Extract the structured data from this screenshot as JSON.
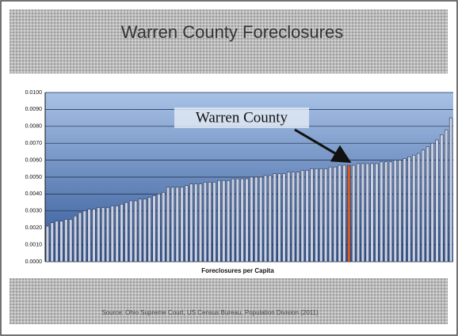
{
  "chart_data": {
    "type": "bar",
    "title": "Warren County Foreclosures",
    "x_label": "Foreclosures per Capita",
    "source": "Source: Ohio Supreme Court, US Census Bureau, Population Division (2011)",
    "annotation": "Warren County",
    "values": [
      0.0021,
      0.0023,
      0.0024,
      0.0024,
      0.0025,
      0.0025,
      0.0027,
      0.0029,
      0.003,
      0.0031,
      0.0031,
      0.0032,
      0.0032,
      0.0032,
      0.0033,
      0.0033,
      0.0034,
      0.0035,
      0.0036,
      0.0036,
      0.0037,
      0.0037,
      0.0038,
      0.0039,
      0.004,
      0.0041,
      0.0044,
      0.0044,
      0.0044,
      0.0044,
      0.0045,
      0.0046,
      0.0046,
      0.0046,
      0.0047,
      0.0047,
      0.0047,
      0.0048,
      0.0048,
      0.0048,
      0.0049,
      0.0049,
      0.0049,
      0.0049,
      0.005,
      0.005,
      0.005,
      0.0051,
      0.0051,
      0.0052,
      0.0052,
      0.0052,
      0.0053,
      0.0053,
      0.0053,
      0.0054,
      0.0054,
      0.0055,
      0.0055,
      0.0055,
      0.0055,
      0.0056,
      0.0056,
      0.0057,
      0.0057,
      0.0057,
      0.0057,
      0.0058,
      0.0058,
      0.0058,
      0.0058,
      0.0058,
      0.0059,
      0.0059,
      0.0059,
      0.006,
      0.006,
      0.0061,
      0.0062,
      0.0063,
      0.0064,
      0.0066,
      0.0068,
      0.007,
      0.0072,
      0.0075,
      0.0078,
      0.0085
    ],
    "colors": [
      "#c9d1e2",
      "#c9d1e2",
      "#c9d1e2",
      "#c9d1e2",
      "#c9d1e2",
      "#c9d1e2",
      "#c9d1e2",
      "#c9d1e2",
      "#c9d1e2",
      "#c9d1e2",
      "#c9d1e2",
      "#c9d1e2",
      "#c9d1e2",
      "#c9d1e2",
      "#c9d1e2",
      "#c9d1e2",
      "#c9d1e2",
      "#c9d1e2",
      "#c9d1e2",
      "#c9d1e2",
      "#c9d1e2",
      "#c9d1e2",
      "#c9d1e2",
      "#c9d1e2",
      "#c9d1e2",
      "#c9d1e2",
      "#c9d1e2",
      "#c9d1e2",
      "#c9d1e2",
      "#c9d1e2",
      "#c9d1e2",
      "#c9d1e2",
      "#c9d1e2",
      "#c9d1e2",
      "#c9d1e2",
      "#c9d1e2",
      "#c9d1e2",
      "#c9d1e2",
      "#c9d1e2",
      "#c9d1e2",
      "#c9d1e2",
      "#c9d1e2",
      "#c9d1e2",
      "#c9d1e2",
      "#c9d1e2",
      "#c9d1e2",
      "#c9d1e2",
      "#c9d1e2",
      "#c9d1e2",
      "#c9d1e2",
      "#c9d1e2",
      "#c9d1e2",
      "#c9d1e2",
      "#c9d1e2",
      "#c9d1e2",
      "#c9d1e2",
      "#c9d1e2",
      "#c9d1e2",
      "#c9d1e2",
      "#c9d1e2",
      "#c9d1e2",
      "#c9d1e2",
      "#c9d1e2",
      "#c9d1e2",
      "#c9d1e2",
      "#d85a22",
      "#c9d1e2",
      "#c9d1e2",
      "#c9d1e2",
      "#c9d1e2",
      "#c9d1e2",
      "#c9d1e2",
      "#c9d1e2",
      "#c9d1e2",
      "#c9d1e2",
      "#c9d1e2",
      "#c9d1e2",
      "#c9d1e2",
      "#c9d1e2",
      "#c9d1e2",
      "#c9d1e2",
      "#c9d1e2",
      "#c9d1e2",
      "#c9d1e2",
      "#c9d1e2",
      "#c9d1e2",
      "#c9d1e2",
      "#c9d1e2"
    ],
    "ylim": [
      0,
      0.01
    ],
    "yticks": [
      {
        "value": 0,
        "label": "0.0000"
      },
      {
        "value": 0.001,
        "label": "0.0010"
      },
      {
        "value": 0.002,
        "label": "0.0020"
      },
      {
        "value": 0.003,
        "label": "0.0030"
      },
      {
        "value": 0.004,
        "label": "0.0040"
      },
      {
        "value": 0.005,
        "label": "0.0050"
      },
      {
        "value": 0.006,
        "label": "0.0060"
      },
      {
        "value": 0.007,
        "label": "0.0070"
      },
      {
        "value": 0.008,
        "label": "0.0080"
      },
      {
        "value": 0.009,
        "label": "0.0090"
      },
      {
        "value": 0.01,
        "label": "0.0100"
      }
    ],
    "grid": true
  }
}
